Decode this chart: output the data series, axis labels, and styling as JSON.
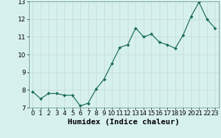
{
  "x": [
    0,
    1,
    2,
    3,
    4,
    5,
    6,
    7,
    8,
    9,
    10,
    11,
    12,
    13,
    14,
    15,
    16,
    17,
    18,
    19,
    20,
    21,
    22,
    23
  ],
  "y": [
    7.9,
    7.5,
    7.8,
    7.8,
    7.7,
    7.7,
    7.1,
    7.25,
    8.05,
    8.6,
    9.5,
    10.4,
    10.55,
    11.5,
    11.0,
    11.15,
    10.7,
    10.55,
    10.35,
    11.1,
    12.15,
    12.95,
    12.0,
    11.5
  ],
  "xlabel": "Humidex (Indice chaleur)",
  "ylim": [
    7,
    13
  ],
  "xlim": [
    -0.5,
    23.5
  ],
  "yticks": [
    7,
    8,
    9,
    10,
    11,
    12,
    13
  ],
  "xticks": [
    0,
    1,
    2,
    3,
    4,
    5,
    6,
    7,
    8,
    9,
    10,
    11,
    12,
    13,
    14,
    15,
    16,
    17,
    18,
    19,
    20,
    21,
    22,
    23
  ],
  "line_color": "#1a6b5a",
  "marker_color": "#1a6b5a",
  "bg_color": "#d6f0ee",
  "grid_color": "#c8dedd",
  "xlabel_fontsize": 8,
  "tick_fontsize": 6.5
}
